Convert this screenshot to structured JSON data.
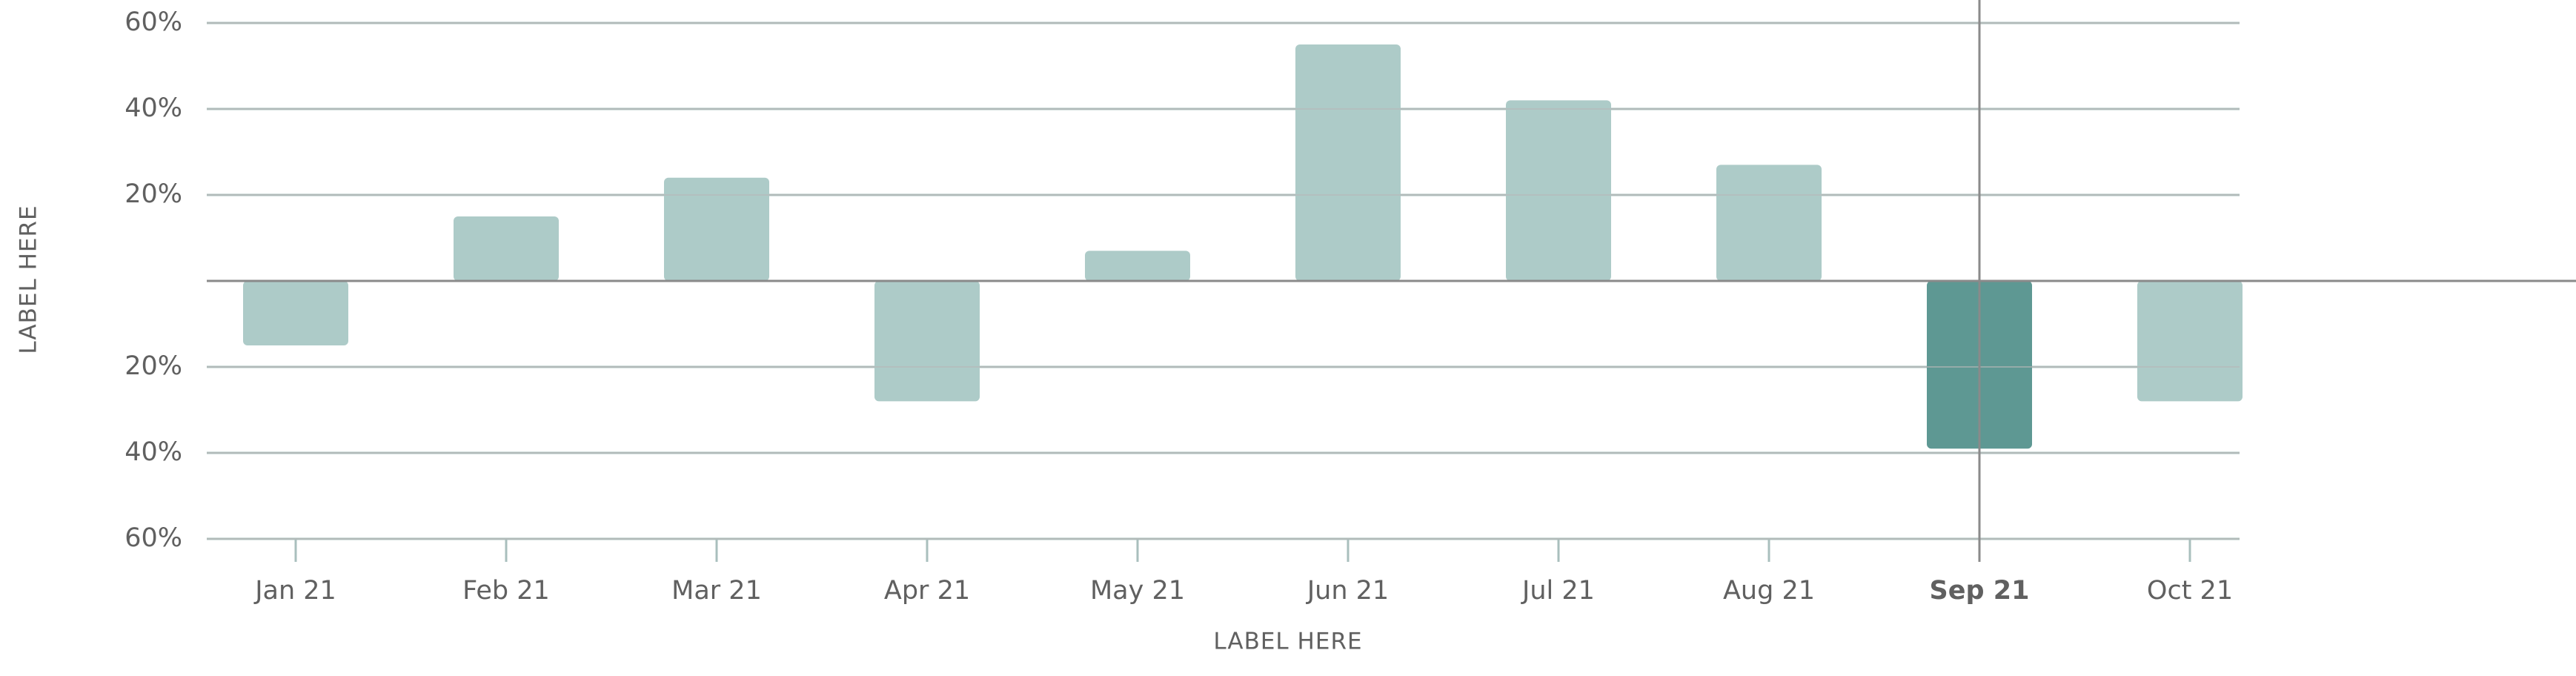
{
  "chart_data": {
    "type": "bar",
    "x_label": "LABEL HERE",
    "y_label": "LABEL HERE",
    "categories": [
      "Jan 21",
      "Feb 21",
      "Mar 21",
      "Apr 21",
      "May 21",
      "Jun 21",
      "Jul 21",
      "Aug 21",
      "Sep 21",
      "Oct 21"
    ],
    "values": [
      -15,
      15,
      24,
      -28,
      7,
      55,
      42,
      27,
      -39,
      -28
    ],
    "color": "#adcbc8",
    "highlight": {
      "index": 8,
      "color": "#5e9893"
    },
    "ylim": [
      -60,
      60
    ],
    "yticks": [
      {
        "value": 60,
        "label": "60%"
      },
      {
        "value": 40,
        "label": "40%"
      },
      {
        "value": 20,
        "label": "20%"
      },
      {
        "value": -20,
        "label": "20%"
      },
      {
        "value": -40,
        "label": "40%"
      },
      {
        "value": -60,
        "label": "60%"
      }
    ],
    "grid": true
  }
}
